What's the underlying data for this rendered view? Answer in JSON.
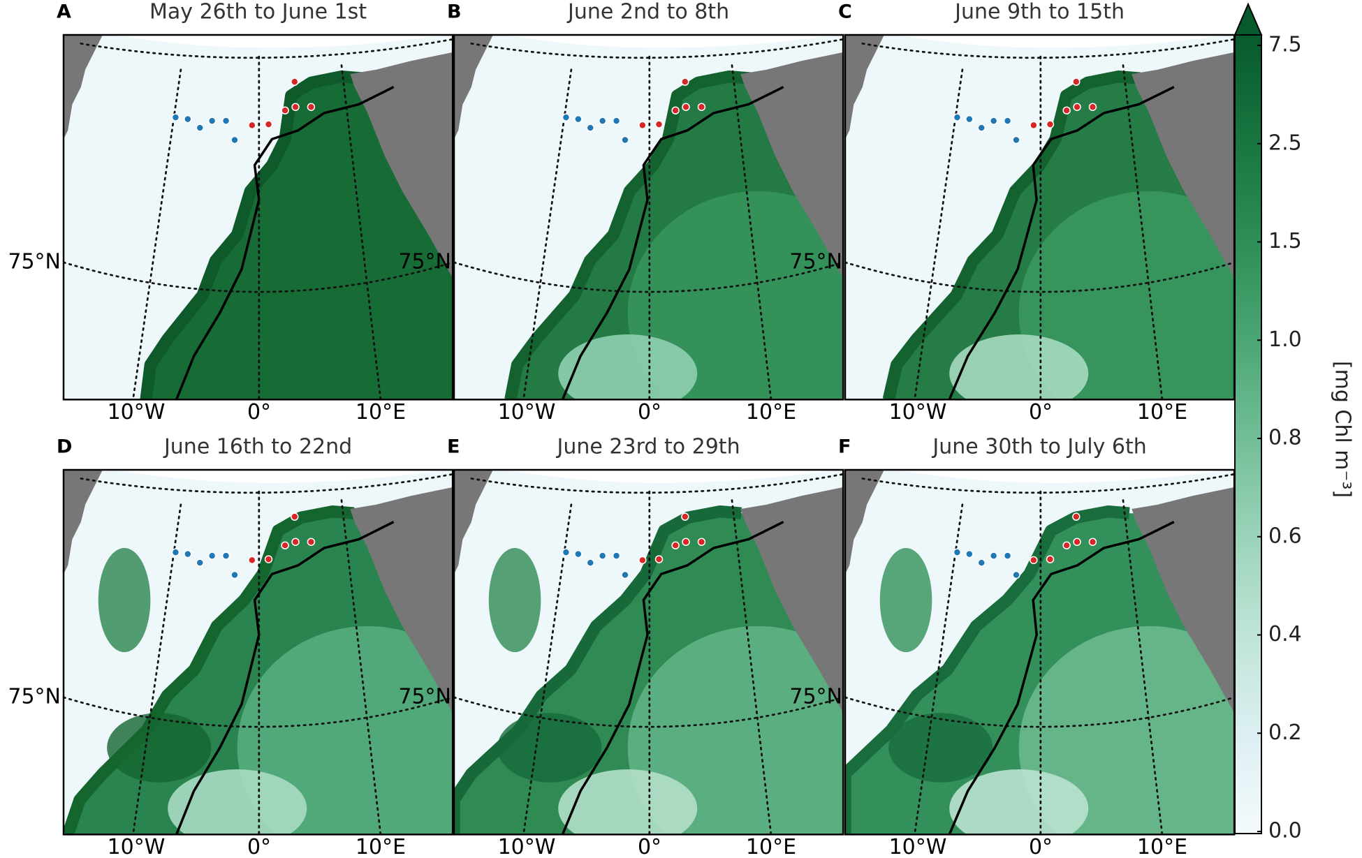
{
  "panels": [
    {
      "letter": "A",
      "title": "May 26th to June 1st"
    },
    {
      "letter": "B",
      "title": "June 2nd to 8th"
    },
    {
      "letter": "C",
      "title": "June 9th to 15th"
    },
    {
      "letter": "D",
      "title": "June 16th to 22nd"
    },
    {
      "letter": "E",
      "title": "June 23rd to 29th"
    },
    {
      "letter": "F",
      "title": "June 30th to July 6th"
    }
  ],
  "axis_labels": {
    "lon": [
      "10°W",
      "0°",
      "10°E"
    ],
    "lat": "75°N"
  },
  "colorbar": {
    "ticks": [
      "0.0",
      "0.2",
      "0.4",
      "0.6",
      "0.8",
      "1.0",
      "1.5",
      "2.5",
      "7.5"
    ],
    "label": "[mg Chl m⁻³]"
  }
}
